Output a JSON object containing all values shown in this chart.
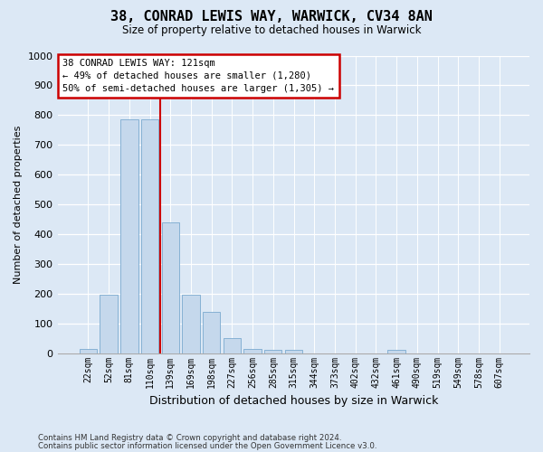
{
  "title1": "38, CONRAD LEWIS WAY, WARWICK, CV34 8AN",
  "title2": "Size of property relative to detached houses in Warwick",
  "xlabel": "Distribution of detached houses by size in Warwick",
  "ylabel": "Number of detached properties",
  "footer1": "Contains HM Land Registry data © Crown copyright and database right 2024.",
  "footer2": "Contains public sector information licensed under the Open Government Licence v3.0.",
  "bar_color": "#c5d8ec",
  "bar_edge_color": "#7aaacf",
  "bg_color": "#dce8f5",
  "plot_bg_color": "#dce8f5",
  "bins": [
    "22sqm",
    "52sqm",
    "81sqm",
    "110sqm",
    "139sqm",
    "169sqm",
    "198sqm",
    "227sqm",
    "256sqm",
    "285sqm",
    "315sqm",
    "344sqm",
    "373sqm",
    "402sqm",
    "432sqm",
    "461sqm",
    "490sqm",
    "519sqm",
    "549sqm",
    "578sqm",
    "607sqm"
  ],
  "values": [
    15,
    195,
    785,
    785,
    440,
    195,
    140,
    50,
    15,
    10,
    10,
    0,
    0,
    0,
    0,
    10,
    0,
    0,
    0,
    0,
    0
  ],
  "red_line_color": "#cc0000",
  "red_line_x": 3.5,
  "annotation_line1": "38 CONRAD LEWIS WAY: 121sqm",
  "annotation_line2": "← 49% of detached houses are smaller (1,280)",
  "annotation_line3": "50% of semi-detached houses are larger (1,305) →",
  "annotation_box_facecolor": "#ffffff",
  "annotation_box_edgecolor": "#cc0000",
  "ylim": [
    0,
    1000
  ],
  "yticks": [
    0,
    100,
    200,
    300,
    400,
    500,
    600,
    700,
    800,
    900,
    1000
  ]
}
